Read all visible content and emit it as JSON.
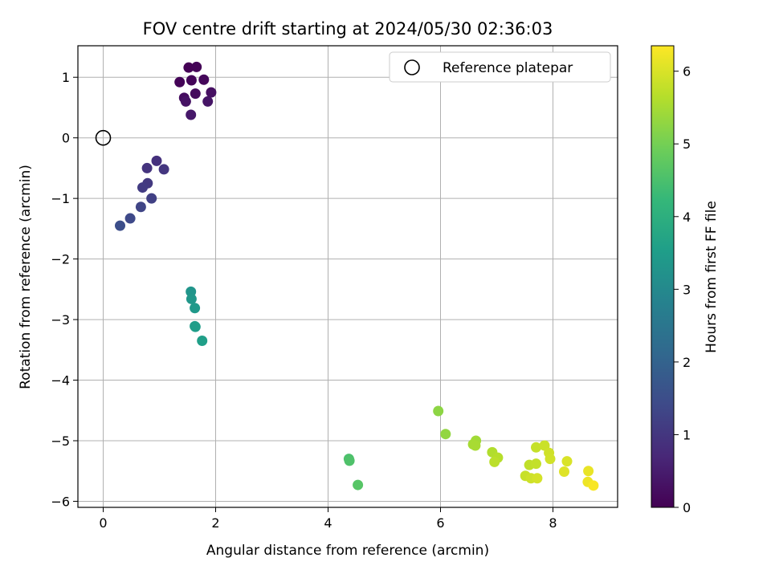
{
  "chart_data": {
    "type": "scatter",
    "title": "FOV centre drift starting at 2024/05/30 02:36:03",
    "xlabel": "Angular distance from reference (arcmin)",
    "ylabel": "Rotation from reference (arcmin)",
    "xlim": [
      -0.45,
      9.15
    ],
    "ylim": [
      -6.1,
      1.52
    ],
    "xticks": [
      0,
      2,
      4,
      6,
      8
    ],
    "yticks": [
      1,
      0,
      -1,
      -2,
      -3,
      -4,
      -5,
      -6
    ],
    "grid": true,
    "legend": {
      "placement": "top-right",
      "entries": [
        "Reference platepar"
      ]
    },
    "reference_point": {
      "x": 0,
      "y": 0,
      "marker": "open-circle"
    },
    "colorbar": {
      "label": "Hours from first FF file",
      "min": 0,
      "max": 6.35,
      "ticks": [
        0,
        1,
        2,
        3,
        4,
        5,
        6
      ],
      "colormap": "viridis",
      "colormap_stops": [
        "#440154",
        "#482878",
        "#3e4a89",
        "#31688e",
        "#26828e",
        "#1f9e89",
        "#35b779",
        "#6ece58",
        "#b5de2b",
        "#fde725"
      ]
    },
    "points": [
      {
        "x": 1.52,
        "y": 1.16,
        "c": 0.02
      },
      {
        "x": 1.66,
        "y": 1.17,
        "c": 0.04
      },
      {
        "x": 1.36,
        "y": 0.92,
        "c": 0.06
      },
      {
        "x": 1.57,
        "y": 0.95,
        "c": 0.08
      },
      {
        "x": 1.79,
        "y": 0.96,
        "c": 0.12
      },
      {
        "x": 1.44,
        "y": 0.66,
        "c": 0.22
      },
      {
        "x": 1.64,
        "y": 0.73,
        "c": 0.18
      },
      {
        "x": 1.92,
        "y": 0.75,
        "c": 0.28
      },
      {
        "x": 1.47,
        "y": 0.6,
        "c": 0.32
      },
      {
        "x": 1.86,
        "y": 0.6,
        "c": 0.36
      },
      {
        "x": 1.56,
        "y": 0.38,
        "c": 0.42
      },
      {
        "x": 0.95,
        "y": -0.38,
        "c": 0.9
      },
      {
        "x": 0.78,
        "y": -0.5,
        "c": 0.95
      },
      {
        "x": 1.08,
        "y": -0.52,
        "c": 1.0
      },
      {
        "x": 0.79,
        "y": -0.75,
        "c": 1.05
      },
      {
        "x": 0.7,
        "y": -0.82,
        "c": 1.1
      },
      {
        "x": 0.86,
        "y": -1.0,
        "c": 1.2
      },
      {
        "x": 0.67,
        "y": -1.14,
        "c": 1.3
      },
      {
        "x": 0.48,
        "y": -1.33,
        "c": 1.4
      },
      {
        "x": 0.3,
        "y": -1.45,
        "c": 1.5
      },
      {
        "x": 1.56,
        "y": -2.54,
        "c": 3.3
      },
      {
        "x": 1.57,
        "y": -2.66,
        "c": 3.35
      },
      {
        "x": 1.63,
        "y": -2.81,
        "c": 3.4
      },
      {
        "x": 1.63,
        "y": -3.11,
        "c": 3.45
      },
      {
        "x": 1.64,
        "y": -3.12,
        "c": 3.5
      },
      {
        "x": 1.76,
        "y": -3.35,
        "c": 3.55
      },
      {
        "x": 4.37,
        "y": -5.3,
        "c": 4.5
      },
      {
        "x": 4.38,
        "y": -5.33,
        "c": 4.55
      },
      {
        "x": 4.53,
        "y": -5.73,
        "c": 4.65
      },
      {
        "x": 5.96,
        "y": -4.51,
        "c": 5.25
      },
      {
        "x": 6.09,
        "y": -4.89,
        "c": 5.3
      },
      {
        "x": 6.63,
        "y": -5.0,
        "c": 5.45
      },
      {
        "x": 6.58,
        "y": -5.06,
        "c": 5.5
      },
      {
        "x": 6.62,
        "y": -5.08,
        "c": 5.52
      },
      {
        "x": 6.92,
        "y": -5.19,
        "c": 5.6
      },
      {
        "x": 7.02,
        "y": -5.28,
        "c": 5.65
      },
      {
        "x": 6.96,
        "y": -5.35,
        "c": 5.7
      },
      {
        "x": 7.7,
        "y": -5.11,
        "c": 5.8
      },
      {
        "x": 7.85,
        "y": -5.08,
        "c": 5.85
      },
      {
        "x": 7.93,
        "y": -5.2,
        "c": 5.9
      },
      {
        "x": 7.95,
        "y": -5.3,
        "c": 5.92
      },
      {
        "x": 7.58,
        "y": -5.4,
        "c": 5.75
      },
      {
        "x": 7.7,
        "y": -5.38,
        "c": 5.78
      },
      {
        "x": 7.51,
        "y": -5.58,
        "c": 5.82
      },
      {
        "x": 7.61,
        "y": -5.62,
        "c": 5.88
      },
      {
        "x": 7.72,
        "y": -5.62,
        "c": 5.95
      },
      {
        "x": 8.25,
        "y": -5.34,
        "c": 6.0
      },
      {
        "x": 8.2,
        "y": -5.51,
        "c": 6.05
      },
      {
        "x": 8.63,
        "y": -5.5,
        "c": 6.15
      },
      {
        "x": 8.62,
        "y": -5.68,
        "c": 6.2
      },
      {
        "x": 8.72,
        "y": -5.74,
        "c": 6.3
      }
    ]
  }
}
